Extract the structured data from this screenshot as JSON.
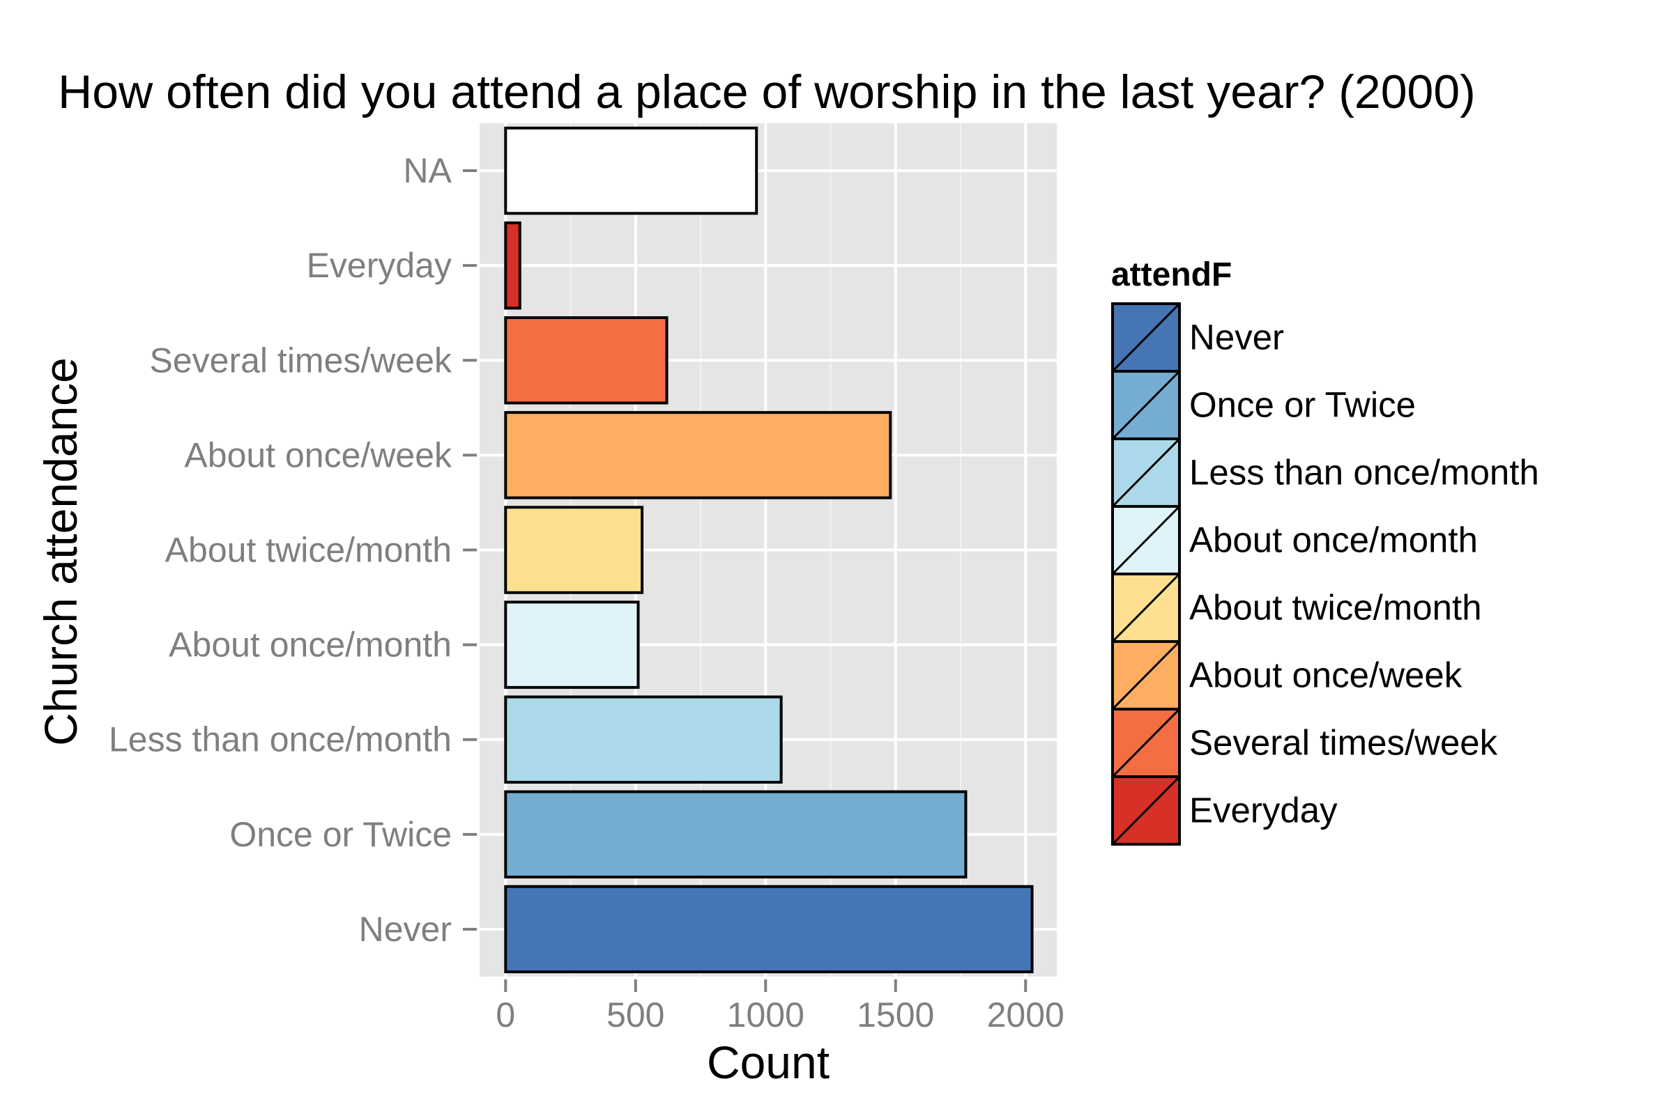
{
  "chart_data": {
    "type": "bar",
    "orientation": "horizontal",
    "title": "How often did you attend a place of worship in the last year? (2000)",
    "xlabel": "Count",
    "ylabel": "Church attendance",
    "xlim": [
      -100,
      2120
    ],
    "x_ticks": [
      0,
      500,
      1000,
      1500,
      2000
    ],
    "x_minor_ticks": [
      250,
      750,
      1250,
      1750
    ],
    "grid": true,
    "legend_position": "right",
    "categories": [
      "Never",
      "Once or Twice",
      "Less than once/month",
      "About once/month",
      "About twice/month",
      "About once/week",
      "Several times/week",
      "Everyday",
      "NA"
    ],
    "values": [
      2025,
      1770,
      1060,
      510,
      525,
      1480,
      620,
      55,
      965
    ],
    "colors": [
      "#4575b4",
      "#74add1",
      "#abd9e9",
      "#e0f3f8",
      "#fee090",
      "#fdae61",
      "#f46d43",
      "#d73027",
      "#ffffff"
    ],
    "legend": {
      "title": "attendF",
      "entries": [
        {
          "label": "Never",
          "color": "#4575b4"
        },
        {
          "label": "Once or Twice",
          "color": "#74add1"
        },
        {
          "label": "Less than once/month",
          "color": "#abd9e9"
        },
        {
          "label": "About once/month",
          "color": "#e0f3f8"
        },
        {
          "label": "About twice/month",
          "color": "#fee090"
        },
        {
          "label": "About once/week",
          "color": "#fdae61"
        },
        {
          "label": "Several times/week",
          "color": "#f46d43"
        },
        {
          "label": "Everyday",
          "color": "#d73027"
        }
      ]
    }
  }
}
